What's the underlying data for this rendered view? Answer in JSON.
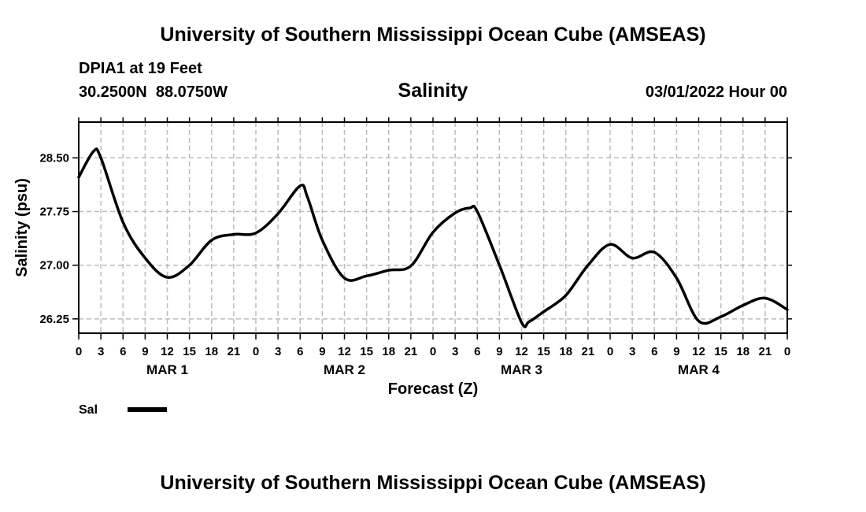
{
  "header": {
    "title_top": "University of Southern Mississippi Ocean Cube (AMSEAS)",
    "title_bottom": "University of Southern Mississippi Ocean Cube (AMSEAS)",
    "station": "DPIA1 at 19 Feet",
    "coordinates": "30.2500N  88.0750W",
    "run_time": "03/01/2022 Hour 00"
  },
  "chart_data": {
    "type": "line",
    "title": "Salinity",
    "xlabel": "Forecast (Z)",
    "ylabel": "Salinity (psu)",
    "xlim": [
      0,
      96
    ],
    "ylim": [
      26.05,
      29.0
    ],
    "grid": true,
    "x_tick_step_hours": 3,
    "x_tick_labels": [
      "0",
      "3",
      "6",
      "9",
      "12",
      "15",
      "18",
      "21",
      "0",
      "3",
      "6",
      "9",
      "12",
      "15",
      "18",
      "21",
      "0",
      "3",
      "6",
      "9",
      "12",
      "15",
      "18",
      "21",
      "0",
      "3",
      "6",
      "9",
      "12",
      "15",
      "18",
      "21",
      "0"
    ],
    "day_labels": [
      {
        "hour": 12,
        "label": "MAR 1"
      },
      {
        "hour": 36,
        "label": "MAR 2"
      },
      {
        "hour": 60,
        "label": "MAR 3"
      },
      {
        "hour": 84,
        "label": "MAR 4"
      }
    ],
    "y_ticks": [
      26.25,
      27.0,
      27.75,
      28.5
    ],
    "y_tick_labels": [
      "26.25",
      "27.00",
      "27.75",
      "28.50"
    ],
    "legend": {
      "position": "bottom-left",
      "entries": [
        "Sal"
      ]
    },
    "series": [
      {
        "name": "Sal",
        "color": "#000000",
        "x": [
          0,
          2,
          3,
          6,
          9,
          12,
          15,
          18,
          21,
          24,
          27,
          30,
          31,
          33,
          36,
          39,
          42,
          45,
          48,
          51,
          53,
          54,
          57,
          60,
          61,
          63,
          66,
          69,
          72,
          75,
          78,
          81,
          84,
          87,
          90,
          93,
          96
        ],
        "y": [
          28.23,
          28.59,
          28.5,
          27.6,
          27.1,
          26.83,
          27.0,
          27.35,
          27.43,
          27.45,
          27.72,
          28.11,
          27.95,
          27.35,
          26.82,
          26.85,
          26.93,
          26.99,
          27.46,
          27.73,
          27.8,
          27.75,
          27.0,
          26.2,
          26.21,
          26.35,
          26.58,
          27.0,
          27.29,
          27.1,
          27.18,
          26.82,
          26.22,
          26.28,
          26.44,
          26.54,
          26.38
        ]
      }
    ]
  }
}
